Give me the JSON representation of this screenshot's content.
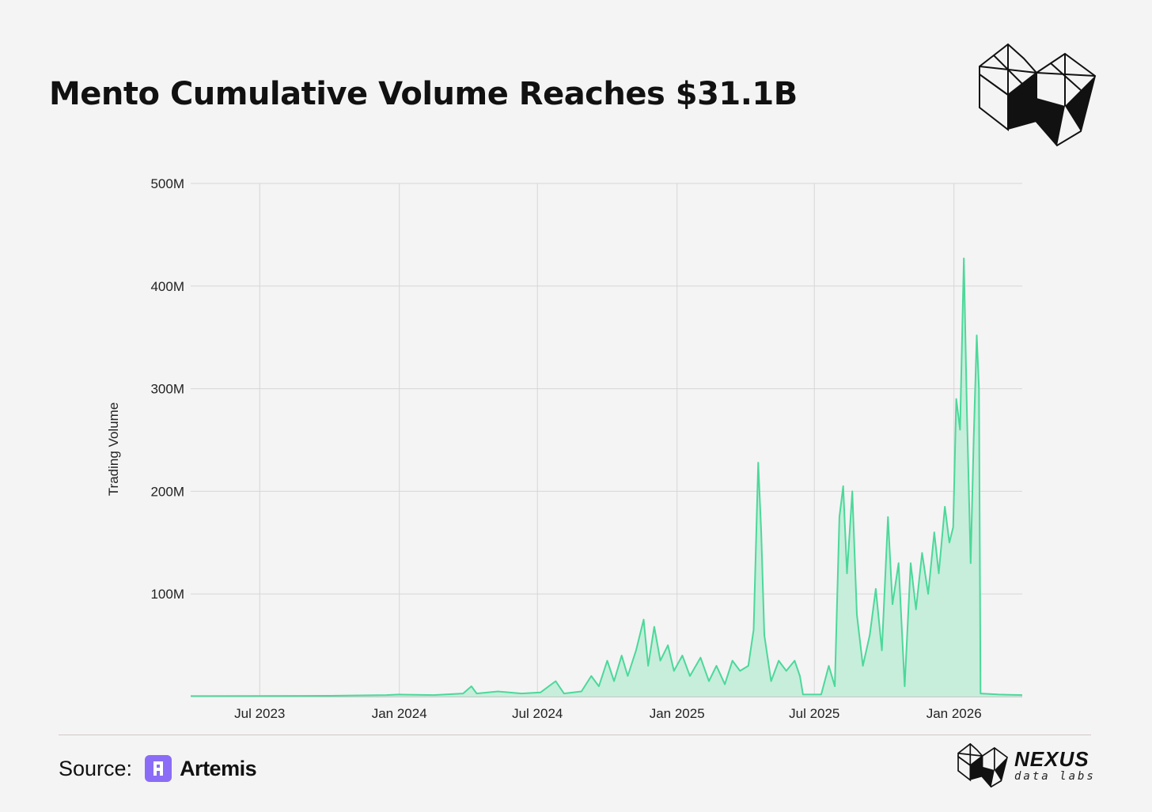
{
  "header": {
    "title": "Mento Cumulative Volume Reaches $31.1B"
  },
  "colors": {
    "line": "#4cd89a",
    "fill": "#c6eedb",
    "grid": "#d6d6d6",
    "artemis": "#8b6cf6"
  },
  "footer": {
    "source_label": "Source:",
    "source_name": "Artemis",
    "brand_name": "NEXUS",
    "brand_sub": "data labs"
  },
  "chart_data": {
    "type": "area",
    "title": "Mento Cumulative Volume Reaches $31.1B",
    "xlabel": "",
    "ylabel": "Trading Volume",
    "ylim": [
      0,
      500
    ],
    "y_unit": "M",
    "y_ticks": [
      "100M",
      "200M",
      "300M",
      "400M",
      "500M"
    ],
    "x_ticks": [
      "Jul 2023",
      "Jan 2024",
      "Jul 2024",
      "Jan 2025",
      "Jul 2025",
      "Jan 2026"
    ],
    "x_domain": [
      "2023-04-01",
      "2026-04-01"
    ],
    "grid": true,
    "series": [
      {
        "name": "Trading Volume",
        "points": [
          [
            "2023-04-01",
            0.5
          ],
          [
            "2023-07-01",
            0.6
          ],
          [
            "2023-10-01",
            0.8
          ],
          [
            "2023-12-15",
            1.5
          ],
          [
            "2024-01-01",
            2
          ],
          [
            "2024-02-15",
            1.5
          ],
          [
            "2024-03-25",
            3
          ],
          [
            "2024-04-05",
            10
          ],
          [
            "2024-04-12",
            3
          ],
          [
            "2024-05-10",
            5
          ],
          [
            "2024-06-10",
            3
          ],
          [
            "2024-07-05",
            4
          ],
          [
            "2024-07-25",
            15
          ],
          [
            "2024-08-05",
            3
          ],
          [
            "2024-08-28",
            5
          ],
          [
            "2024-09-10",
            20
          ],
          [
            "2024-09-20",
            10
          ],
          [
            "2024-10-01",
            35
          ],
          [
            "2024-10-10",
            15
          ],
          [
            "2024-10-20",
            40
          ],
          [
            "2024-10-28",
            20
          ],
          [
            "2024-11-08",
            45
          ],
          [
            "2024-11-18",
            75
          ],
          [
            "2024-11-24",
            30
          ],
          [
            "2024-12-02",
            68
          ],
          [
            "2024-12-10",
            35
          ],
          [
            "2024-12-20",
            50
          ],
          [
            "2024-12-28",
            25
          ],
          [
            "2025-01-08",
            40
          ],
          [
            "2025-01-18",
            20
          ],
          [
            "2025-02-01",
            38
          ],
          [
            "2025-02-12",
            15
          ],
          [
            "2025-02-22",
            30
          ],
          [
            "2025-03-05",
            12
          ],
          [
            "2025-03-15",
            35
          ],
          [
            "2025-03-25",
            25
          ],
          [
            "2025-04-05",
            30
          ],
          [
            "2025-04-12",
            65
          ],
          [
            "2025-04-18",
            228
          ],
          [
            "2025-04-22",
            160
          ],
          [
            "2025-04-26",
            60
          ],
          [
            "2025-05-05",
            15
          ],
          [
            "2025-05-15",
            35
          ],
          [
            "2025-05-25",
            25
          ],
          [
            "2025-06-05",
            35
          ],
          [
            "2025-06-12",
            20
          ],
          [
            "2025-06-16",
            2
          ],
          [
            "2025-07-10",
            2
          ],
          [
            "2025-07-20",
            30
          ],
          [
            "2025-07-28",
            10
          ],
          [
            "2025-08-03",
            175
          ],
          [
            "2025-08-08",
            205
          ],
          [
            "2025-08-13",
            120
          ],
          [
            "2025-08-20",
            200
          ],
          [
            "2025-08-26",
            80
          ],
          [
            "2025-09-03",
            30
          ],
          [
            "2025-09-12",
            60
          ],
          [
            "2025-09-20",
            105
          ],
          [
            "2025-09-28",
            45
          ],
          [
            "2025-10-06",
            175
          ],
          [
            "2025-10-12",
            90
          ],
          [
            "2025-10-20",
            130
          ],
          [
            "2025-10-28",
            10
          ],
          [
            "2025-11-05",
            130
          ],
          [
            "2025-11-12",
            85
          ],
          [
            "2025-11-20",
            140
          ],
          [
            "2025-11-28",
            100
          ],
          [
            "2025-12-06",
            160
          ],
          [
            "2025-12-12",
            120
          ],
          [
            "2025-12-20",
            185
          ],
          [
            "2025-12-26",
            150
          ],
          [
            "2025-12-31",
            165
          ],
          [
            "2026-01-04",
            290
          ],
          [
            "2026-01-09",
            260
          ],
          [
            "2026-01-14",
            427
          ],
          [
            "2026-01-18",
            280
          ],
          [
            "2026-01-23",
            130
          ],
          [
            "2026-01-27",
            250
          ],
          [
            "2026-01-31",
            352
          ],
          [
            "2026-02-03",
            300
          ],
          [
            "2026-02-05",
            3
          ],
          [
            "2026-03-01",
            2
          ],
          [
            "2026-04-01",
            1.5
          ]
        ]
      }
    ]
  }
}
